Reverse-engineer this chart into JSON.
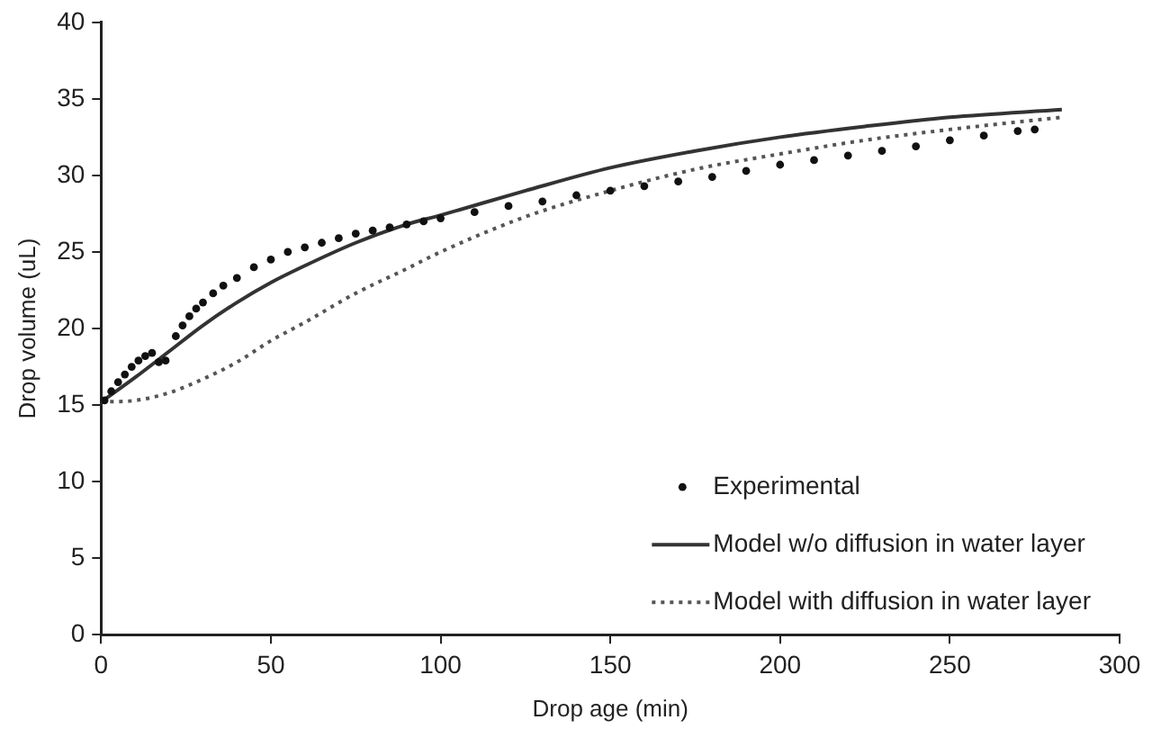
{
  "chart_data": {
    "type": "line",
    "xlabel": "Drop age (min)",
    "ylabel": "Drop volume (uL)",
    "xlim": [
      0,
      300
    ],
    "xticks": [
      0,
      50,
      100,
      150,
      200,
      250,
      300
    ],
    "ylim": [
      0,
      40
    ],
    "yticks": [
      0,
      5,
      10,
      15,
      20,
      25,
      30,
      35,
      40
    ],
    "grid": false,
    "legend": "bottom right",
    "series": [
      {
        "name": "Experimental",
        "type": "scatter",
        "marker": "circle",
        "color": "#111111",
        "x": [
          1,
          3,
          5,
          7,
          9,
          11,
          13,
          15,
          17,
          19,
          22,
          24,
          26,
          28,
          30,
          33,
          36,
          40,
          45,
          50,
          55,
          60,
          65,
          70,
          75,
          80,
          85,
          90,
          95,
          100,
          110,
          120,
          130,
          140,
          150,
          160,
          170,
          180,
          190,
          200,
          210,
          220,
          230,
          240,
          250,
          260,
          270,
          275
        ],
        "values": [
          15.3,
          15.9,
          16.5,
          17.0,
          17.5,
          17.9,
          18.2,
          18.4,
          17.8,
          17.9,
          19.5,
          20.2,
          20.8,
          21.3,
          21.7,
          22.3,
          22.8,
          23.3,
          24.0,
          24.5,
          25.0,
          25.3,
          25.6,
          25.9,
          26.2,
          26.4,
          26.6,
          26.8,
          27.0,
          27.2,
          27.6,
          28.0,
          28.3,
          28.7,
          29.0,
          29.3,
          29.6,
          29.9,
          30.3,
          30.7,
          31.0,
          31.3,
          31.6,
          31.9,
          32.3,
          32.6,
          32.9,
          33.0
        ]
      },
      {
        "name": "Model w/o diffusion in water layer",
        "line_style": "solid",
        "marker": "none",
        "color": "#333333",
        "x": [
          0,
          10,
          20,
          30,
          40,
          50,
          60,
          75,
          90,
          100,
          125,
          150,
          175,
          200,
          225,
          250,
          283
        ],
        "values": [
          15.2,
          16.8,
          18.5,
          20.2,
          21.7,
          23.0,
          24.1,
          25.6,
          26.8,
          27.4,
          29.0,
          30.5,
          31.6,
          32.5,
          33.2,
          33.8,
          34.3
        ]
      },
      {
        "name": "Model with diffusion in water layer",
        "line_style": "dotted",
        "marker": "none",
        "color": "#555555",
        "x": [
          0,
          10,
          20,
          30,
          40,
          50,
          60,
          75,
          90,
          100,
          125,
          150,
          175,
          200,
          225,
          250,
          283
        ],
        "values": [
          15.2,
          15.3,
          15.8,
          16.7,
          17.8,
          19.2,
          20.4,
          22.3,
          23.9,
          25.0,
          27.3,
          29.0,
          30.4,
          31.4,
          32.3,
          33.0,
          33.8
        ]
      }
    ]
  }
}
